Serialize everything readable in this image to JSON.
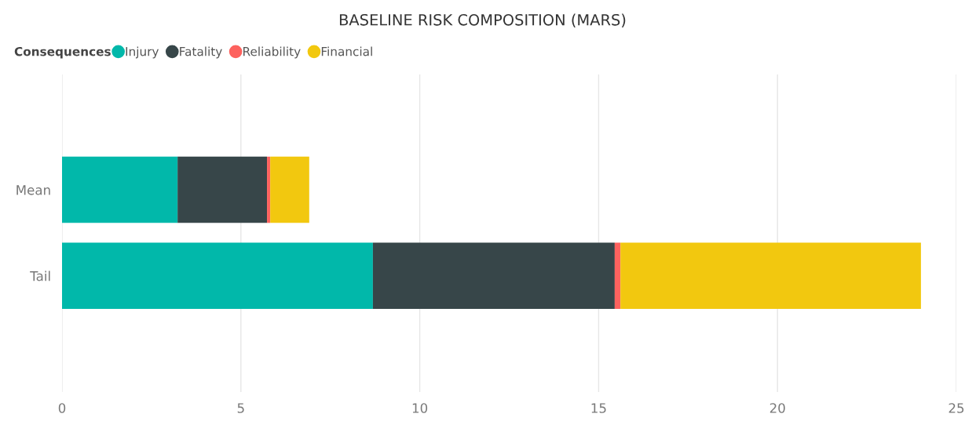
{
  "chart_data": {
    "type": "bar",
    "title": "BASELINE RISK COMPOSITION (MARS)",
    "legend_title": "Consequences",
    "orientation": "horizontal",
    "stacked": true,
    "categories": [
      "Mean",
      "Tail"
    ],
    "series": [
      {
        "name": "Injury",
        "color": "#01b8aa",
        "values": [
          3.23,
          8.69
        ]
      },
      {
        "name": "Fatality",
        "color": "#374649",
        "values": [
          2.5,
          6.76
        ]
      },
      {
        "name": "Reliability",
        "color": "#fd625e",
        "values": [
          0.09,
          0.16
        ]
      },
      {
        "name": "Financial",
        "color": "#f2c80f",
        "values": [
          1.09,
          8.4
        ]
      }
    ],
    "xlim": [
      0,
      25
    ],
    "xticks": [
      0,
      5,
      10,
      15,
      20,
      25
    ],
    "grid": "x",
    "legend": "top left"
  }
}
